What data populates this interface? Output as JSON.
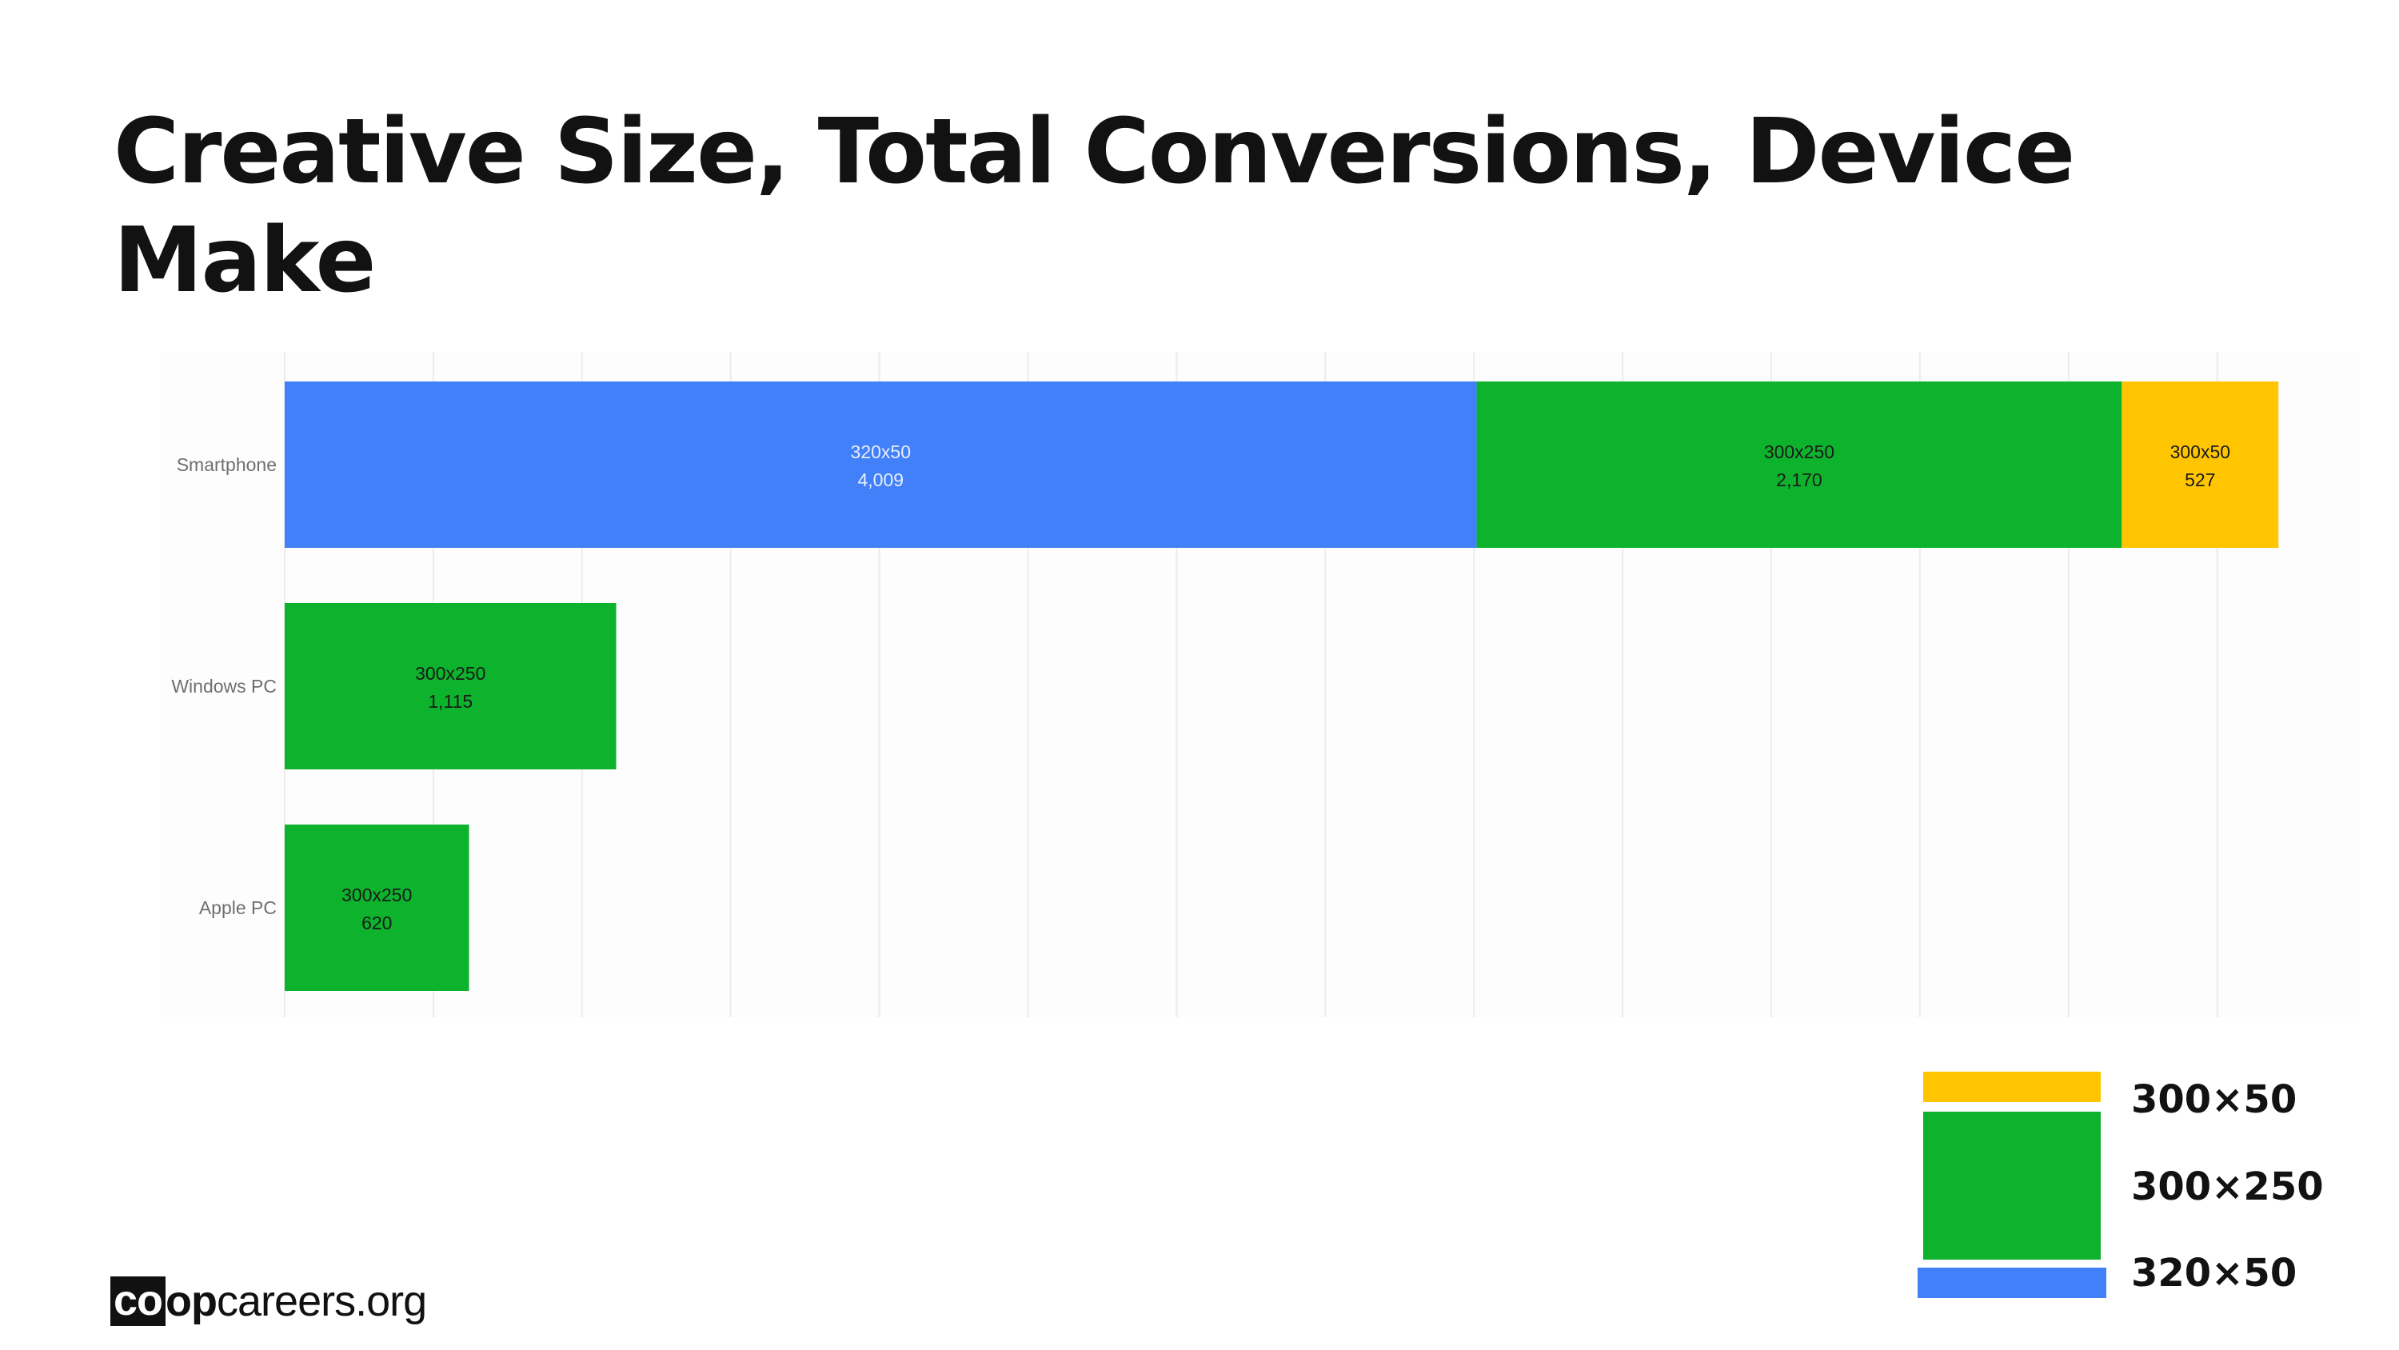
{
  "title": "Creative Size, Total Conversions, Device Make",
  "brand": {
    "part_co": "co",
    "part_op": "op",
    "part_rest": "careers.org"
  },
  "colors": {
    "320x50": "#4180F8",
    "300x250": "#0DB32C",
    "300x50": "#FFC500",
    "grid": "#ececec",
    "plot_bg": "#fdfdfd"
  },
  "chart_data": {
    "type": "bar",
    "orientation": "horizontal",
    "stacked": true,
    "categories": [
      "Smartphone",
      "Windows PC",
      "Apple PC"
    ],
    "series": [
      {
        "name": "320x50",
        "values": [
          4009,
          0,
          0
        ]
      },
      {
        "name": "300x250",
        "values": [
          2170,
          1115,
          620
        ]
      },
      {
        "name": "300x50",
        "values": [
          527,
          0,
          0
        ]
      }
    ],
    "value_labels": {
      "320x50": [
        "4,009",
        "",
        ""
      ],
      "300x250": [
        "2,170",
        "1,115",
        "620"
      ],
      "300x50": [
        "527",
        "",
        ""
      ]
    },
    "xlim": [
      0,
      7000
    ],
    "grid": true,
    "legend": {
      "position": "bottom-right",
      "entries": [
        "300×50",
        "300×250",
        "320×50"
      ]
    }
  }
}
